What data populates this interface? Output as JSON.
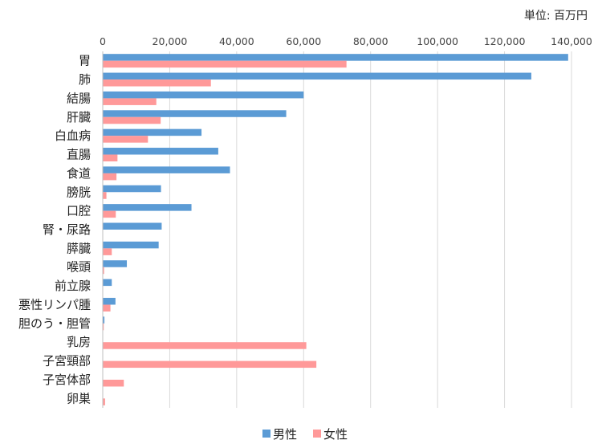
{
  "chart_data": {
    "type": "bar",
    "orientation": "horizontal",
    "unit_label": "単位: 百万円",
    "categories": [
      "胃",
      "肺",
      "結腸",
      "肝臓",
      "白血病",
      "直腸",
      "食道",
      "膀胱",
      "口腔",
      "腎・尿路",
      "膵臓",
      "喉頭",
      "前立腺",
      "悪性リンパ腫",
      "胆のう・胆管",
      "乳房",
      "子宮頸部",
      "子宮体部",
      "卵巣"
    ],
    "series": [
      {
        "name": "男性",
        "color": "#5b9bd5",
        "values": [
          139000,
          128000,
          60000,
          54800,
          29500,
          34500,
          38000,
          17400,
          26500,
          17600,
          16700,
          7200,
          2700,
          3800,
          500,
          0,
          0,
          0,
          0
        ]
      },
      {
        "name": "女性",
        "color": "#ff9999",
        "values": [
          72800,
          32300,
          16000,
          17300,
          13500,
          4400,
          4100,
          1100,
          3900,
          0,
          2700,
          400,
          0,
          2300,
          300,
          60800,
          63800,
          6300,
          700
        ]
      }
    ],
    "xlim": [
      0,
      140000
    ],
    "xticks": [
      "0",
      "20,000",
      "40,000",
      "60,000",
      "80,000",
      "100,000",
      "120,000",
      "140,000"
    ],
    "grid": true,
    "legend_position": "bottom"
  }
}
